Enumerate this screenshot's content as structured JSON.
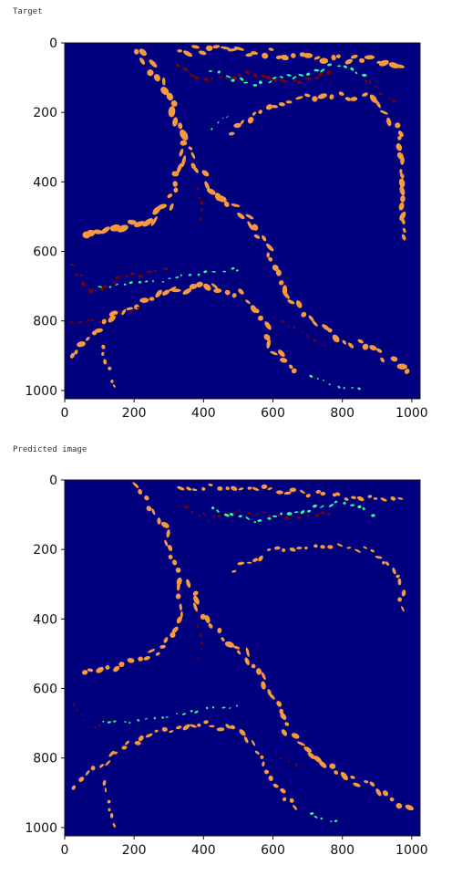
{
  "chart_data": [
    {
      "type": "heatmap",
      "title": "Target",
      "xlabel": "",
      "ylabel": "",
      "xlim": [
        0,
        1024
      ],
      "ylim": [
        1024,
        0
      ],
      "xticks": [
        0,
        200,
        400,
        600,
        800,
        1000
      ],
      "yticks": [
        0,
        200,
        400,
        600,
        800,
        1000
      ],
      "colors": {
        "background": "#00007f",
        "class_orange": "#f79a3e",
        "class_red": "#7f0000",
        "class_green": "#2bff9a"
      },
      "strokes": [
        {
          "cls": "orange",
          "w": 30,
          "pts": [
            [
              210,
              10
            ],
            [
              300,
              150
            ],
            [
              340,
              280
            ],
            [
              330,
              400
            ],
            [
              290,
              480
            ],
            [
              220,
              520
            ],
            [
              130,
              540
            ],
            [
              40,
              550
            ]
          ]
        },
        {
          "cls": "orange",
          "w": 26,
          "pts": [
            [
              330,
              20
            ],
            [
              500,
              20
            ],
            [
              700,
              40
            ],
            [
              850,
              50
            ],
            [
              980,
              60
            ]
          ]
        },
        {
          "cls": "orange",
          "w": 24,
          "pts": [
            [
              480,
              260
            ],
            [
              600,
              180
            ],
            [
              760,
              150
            ],
            [
              880,
              160
            ],
            [
              960,
              250
            ],
            [
              980,
              400
            ],
            [
              970,
              580
            ]
          ]
        },
        {
          "cls": "orange",
          "w": 26,
          "pts": [
            [
              350,
              300
            ],
            [
              420,
              420
            ],
            [
              520,
              500
            ],
            [
              590,
              600
            ],
            [
              640,
              720
            ],
            [
              700,
              790
            ],
            [
              780,
              840
            ],
            [
              900,
              890
            ],
            [
              1000,
              950
            ]
          ]
        },
        {
          "cls": "orange",
          "w": 24,
          "pts": [
            [
              10,
              900
            ],
            [
              80,
              840
            ],
            [
              180,
              760
            ],
            [
              280,
              720
            ],
            [
              400,
              700
            ],
            [
              500,
              720
            ],
            [
              570,
              790
            ],
            [
              600,
              880
            ],
            [
              680,
              950
            ]
          ]
        },
        {
          "cls": "orange",
          "w": 18,
          "pts": [
            [
              110,
              870
            ],
            [
              130,
              960
            ],
            [
              140,
              1010
            ]
          ]
        },
        {
          "cls": "red",
          "w": 16,
          "pts": [
            [
              320,
              70
            ],
            [
              420,
              110
            ],
            [
              520,
              90
            ],
            [
              650,
              110
            ],
            [
              780,
              90
            ]
          ]
        },
        {
          "cls": "red",
          "w": 12,
          "pts": [
            [
              860,
              100
            ],
            [
              960,
              180
            ]
          ]
        },
        {
          "cls": "red",
          "w": 14,
          "pts": [
            [
              20,
              640
            ],
            [
              80,
              720
            ],
            [
              150,
              680
            ],
            [
              300,
              650
            ]
          ]
        },
        {
          "cls": "red",
          "w": 12,
          "pts": [
            [
              20,
              800
            ],
            [
              100,
              800
            ],
            [
              220,
              760
            ]
          ]
        },
        {
          "cls": "red",
          "w": 12,
          "pts": [
            [
              380,
              420
            ],
            [
              400,
              480
            ],
            [
              380,
              520
            ]
          ]
        },
        {
          "cls": "red",
          "w": 10,
          "pts": [
            [
              600,
              790
            ],
            [
              680,
              830
            ],
            [
              760,
              880
            ]
          ]
        },
        {
          "cls": "green",
          "w": 14,
          "pts": [
            [
              420,
              80
            ],
            [
              540,
              120
            ],
            [
              680,
              90
            ],
            [
              800,
              60
            ],
            [
              880,
              100
            ]
          ]
        },
        {
          "cls": "green",
          "w": 10,
          "pts": [
            [
              100,
              700
            ],
            [
              250,
              690
            ],
            [
              400,
              660
            ],
            [
              520,
              650
            ]
          ]
        },
        {
          "cls": "green",
          "w": 10,
          "pts": [
            [
              700,
              960
            ],
            [
              800,
              990
            ],
            [
              860,
              1000
            ]
          ]
        },
        {
          "cls": "green",
          "w": 8,
          "pts": [
            [
              420,
              250
            ],
            [
              480,
              200
            ]
          ]
        }
      ]
    },
    {
      "type": "heatmap",
      "title": "Predicted image",
      "xlabel": "",
      "ylabel": "",
      "xlim": [
        0,
        1024
      ],
      "ylim": [
        1024,
        0
      ],
      "xticks": [
        0,
        200,
        400,
        600,
        800,
        1000
      ],
      "yticks": [
        0,
        200,
        400,
        600,
        800,
        1000
      ],
      "colors": {
        "background": "#00007f",
        "class_orange": "#f79a3e",
        "class_red": "#7f0000",
        "class_green": "#2bff9a"
      },
      "strokes": [
        {
          "cls": "orange",
          "w": 24,
          "pts": [
            [
              210,
              10
            ],
            [
              290,
              150
            ],
            [
              330,
              280
            ],
            [
              330,
              400
            ],
            [
              290,
              480
            ],
            [
              220,
              520
            ],
            [
              130,
              540
            ],
            [
              40,
              550
            ]
          ]
        },
        {
          "cls": "orange",
          "w": 20,
          "pts": [
            [
              330,
              20
            ],
            [
              500,
              20
            ],
            [
              700,
              40
            ],
            [
              850,
              50
            ],
            [
              980,
              60
            ]
          ]
        },
        {
          "cls": "orange",
          "w": 18,
          "pts": [
            [
              480,
              260
            ],
            [
              600,
              200
            ],
            [
              760,
              190
            ],
            [
              880,
              200
            ],
            [
              960,
              270
            ],
            [
              980,
              380
            ]
          ]
        },
        {
          "cls": "orange",
          "w": 24,
          "pts": [
            [
              350,
              300
            ],
            [
              420,
              420
            ],
            [
              520,
              500
            ],
            [
              590,
              600
            ],
            [
              640,
              720
            ],
            [
              700,
              790
            ],
            [
              780,
              840
            ],
            [
              900,
              890
            ],
            [
              1000,
              950
            ]
          ]
        },
        {
          "cls": "orange",
          "w": 20,
          "pts": [
            [
              20,
              880
            ],
            [
              80,
              840
            ],
            [
              180,
              760
            ],
            [
              280,
              720
            ],
            [
              400,
              700
            ],
            [
              500,
              720
            ],
            [
              570,
              790
            ],
            [
              600,
              880
            ],
            [
              680,
              950
            ]
          ]
        },
        {
          "cls": "orange",
          "w": 14,
          "pts": [
            [
              110,
              870
            ],
            [
              130,
              960
            ],
            [
              140,
              1010
            ]
          ]
        },
        {
          "cls": "red",
          "w": 12,
          "pts": [
            [
              320,
              70
            ],
            [
              420,
              110
            ],
            [
              520,
              90
            ],
            [
              650,
              110
            ],
            [
              780,
              90
            ]
          ]
        },
        {
          "cls": "red",
          "w": 8,
          "pts": [
            [
              20,
              640
            ],
            [
              80,
              720
            ],
            [
              150,
              680
            ]
          ]
        },
        {
          "cls": "red",
          "w": 10,
          "pts": [
            [
              380,
              420
            ],
            [
              400,
              480
            ],
            [
              380,
              520
            ]
          ]
        },
        {
          "cls": "red",
          "w": 8,
          "pts": [
            [
              600,
              790
            ],
            [
              680,
              830
            ]
          ]
        },
        {
          "cls": "green",
          "w": 14,
          "pts": [
            [
              420,
              80
            ],
            [
              540,
              120
            ],
            [
              680,
              90
            ],
            [
              800,
              60
            ],
            [
              900,
              100
            ]
          ]
        },
        {
          "cls": "green",
          "w": 10,
          "pts": [
            [
              100,
              700
            ],
            [
              250,
              690
            ],
            [
              400,
              660
            ],
            [
              520,
              650
            ]
          ]
        },
        {
          "cls": "green",
          "w": 10,
          "pts": [
            [
              700,
              960
            ],
            [
              800,
              990
            ]
          ]
        }
      ]
    }
  ]
}
